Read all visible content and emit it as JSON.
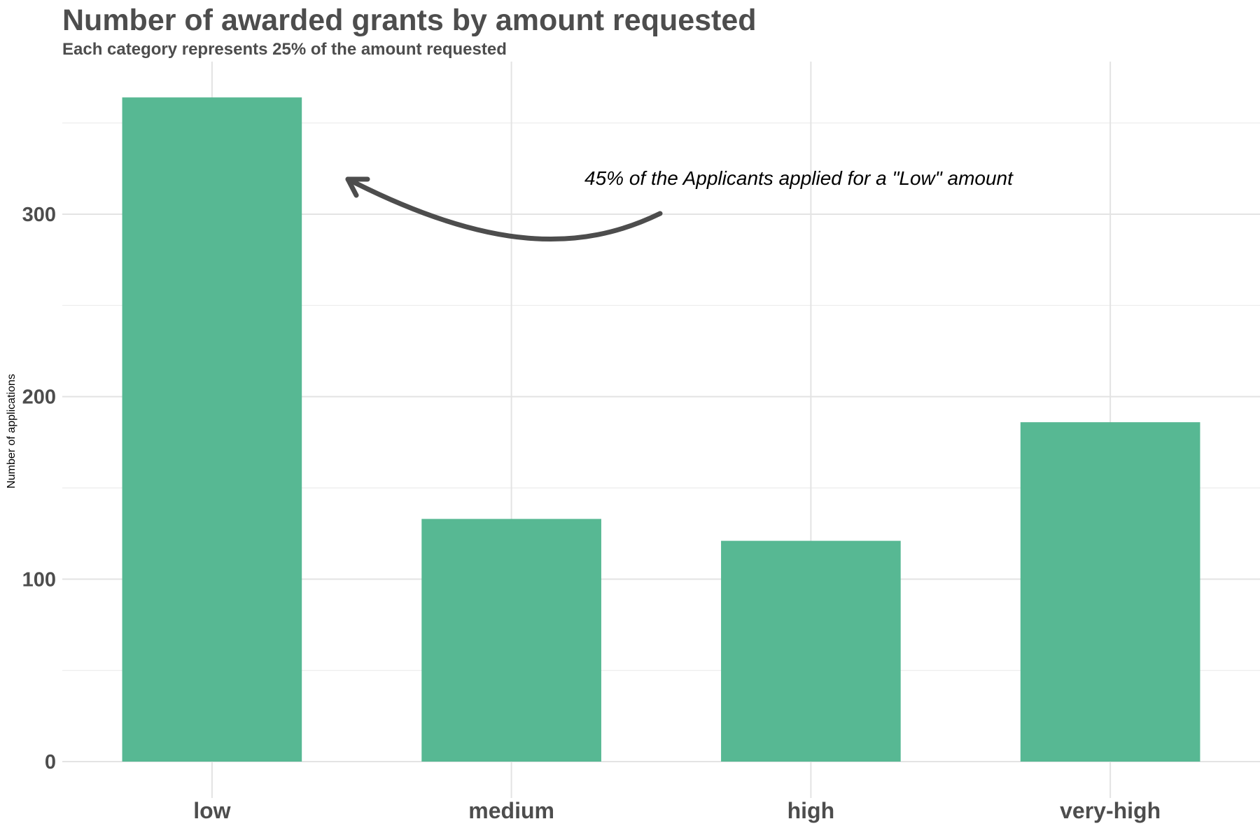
{
  "chart_data": {
    "type": "bar",
    "title": "Number of awarded grants by amount requested",
    "subtitle": "Each category represents 25% of the amount requested",
    "xlabel": "",
    "ylabel": "Number of applications",
    "categories": [
      "low",
      "medium",
      "high",
      "very-high"
    ],
    "values": [
      364,
      133,
      121,
      186
    ],
    "ylim": [
      0,
      383
    ],
    "yticks": [
      "0",
      "100",
      "200",
      "300"
    ],
    "grid": true,
    "legend": "none",
    "bar_color": "#57b893",
    "annotation": {
      "text": "45% of the Applicants applied for a \"Low\" amount",
      "target_category": "low"
    }
  }
}
